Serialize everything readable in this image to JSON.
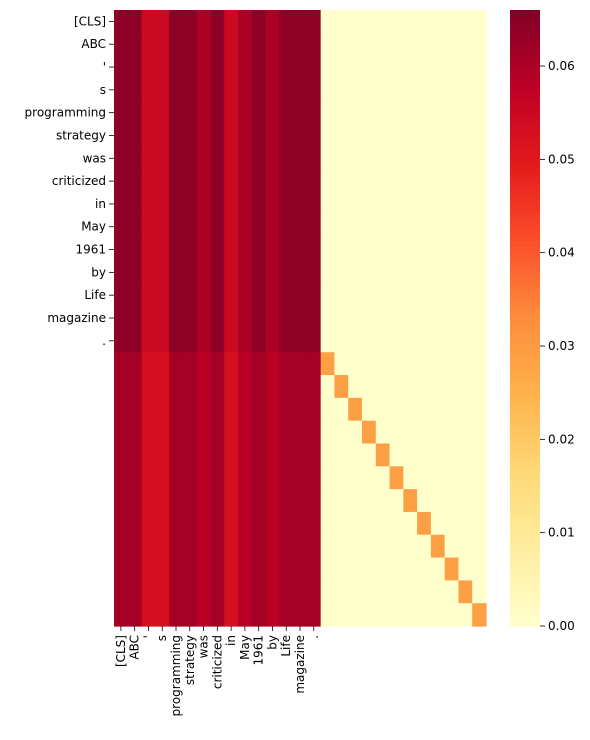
{
  "chart_data": {
    "type": "heatmap",
    "title": "",
    "xlabel": "",
    "ylabel": "",
    "row_labels": [
      "[CLS]",
      "ABC",
      "'",
      "s",
      "programming",
      "strategy",
      "was",
      "criticized",
      "in",
      "May",
      "1961",
      "by",
      "Life",
      "magazine",
      "."
    ],
    "col_labels": [
      "[CLS]",
      "ABC",
      "'",
      "s",
      "programming",
      "strategy",
      "was",
      "criticized",
      "in",
      "May",
      "1961",
      "by",
      "Life",
      "magazine",
      "."
    ],
    "rows_total": 27,
    "unlabeled_row_count": 12,
    "column_weights": [
      0.064,
      0.064,
      0.055,
      0.055,
      0.064,
      0.064,
      0.06,
      0.064,
      0.055,
      0.06,
      0.064,
      0.06,
      0.064,
      0.064,
      0.064
    ],
    "lower_block_column_weights": [
      0.061,
      0.061,
      0.053,
      0.053,
      0.061,
      0.061,
      0.058,
      0.061,
      0.053,
      0.058,
      0.061,
      0.058,
      0.061,
      0.061,
      0.061
    ],
    "right_region_value": 0.0,
    "diagonal_value": 0.029,
    "colorbar": {
      "ticks": [
        "0.00",
        "0.01",
        "0.02",
        "0.03",
        "0.04",
        "0.05",
        "0.06"
      ],
      "tick_values": [
        0,
        0.01,
        0.02,
        0.03,
        0.04,
        0.05,
        0.06
      ],
      "min": 0,
      "max": 0.066
    },
    "colormap": "YlOrRd",
    "legend": "colorbar-right"
  }
}
